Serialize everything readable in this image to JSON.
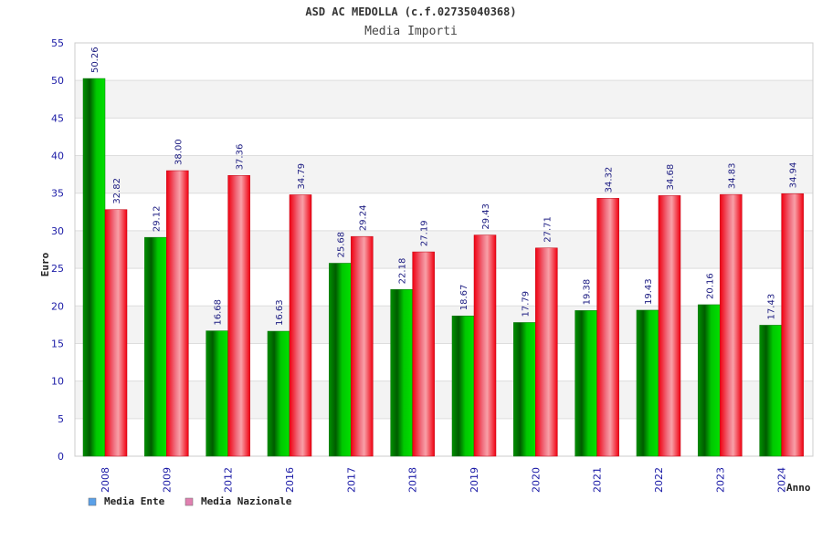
{
  "chart_data": {
    "type": "bar",
    "title": "ASD AC MEDOLLA (c.f.02735040368)",
    "subtitle": "Media Importi",
    "xlabel": "Anno",
    "ylabel": "Euro",
    "ylim": [
      0,
      55
    ],
    "ytick_step": 5,
    "grid": true,
    "legend_position": "bottom-left",
    "categories": [
      "2008",
      "2009",
      "2012",
      "2016",
      "2017",
      "2018",
      "2019",
      "2020",
      "2021",
      "2022",
      "2023",
      "2024"
    ],
    "series": [
      {
        "name": "Media Ente",
        "color": "#00c000",
        "legend_color": "#5aa0e8",
        "values": [
          50.26,
          29.12,
          16.68,
          16.63,
          25.68,
          22.18,
          18.67,
          17.79,
          19.38,
          19.43,
          20.16,
          17.43
        ],
        "labels": [
          "50.26",
          "29.12",
          "16.68",
          "16.63",
          "25.68",
          "22.18",
          "18.67",
          "17.79",
          "19.38",
          "19.43",
          "20.16",
          "17.43"
        ]
      },
      {
        "name": "Media Nazionale",
        "color": "#f00010",
        "legend_color": "#e080b0",
        "values": [
          32.82,
          38.0,
          37.36,
          34.79,
          29.24,
          27.19,
          29.43,
          27.71,
          34.32,
          34.68,
          34.83,
          34.94
        ],
        "labels": [
          "32.82",
          "38.00",
          "37.36",
          "34.79",
          "29.24",
          "27.19",
          "29.43",
          "27.71",
          "34.32",
          "34.68",
          "34.83",
          "34.94"
        ]
      }
    ]
  }
}
